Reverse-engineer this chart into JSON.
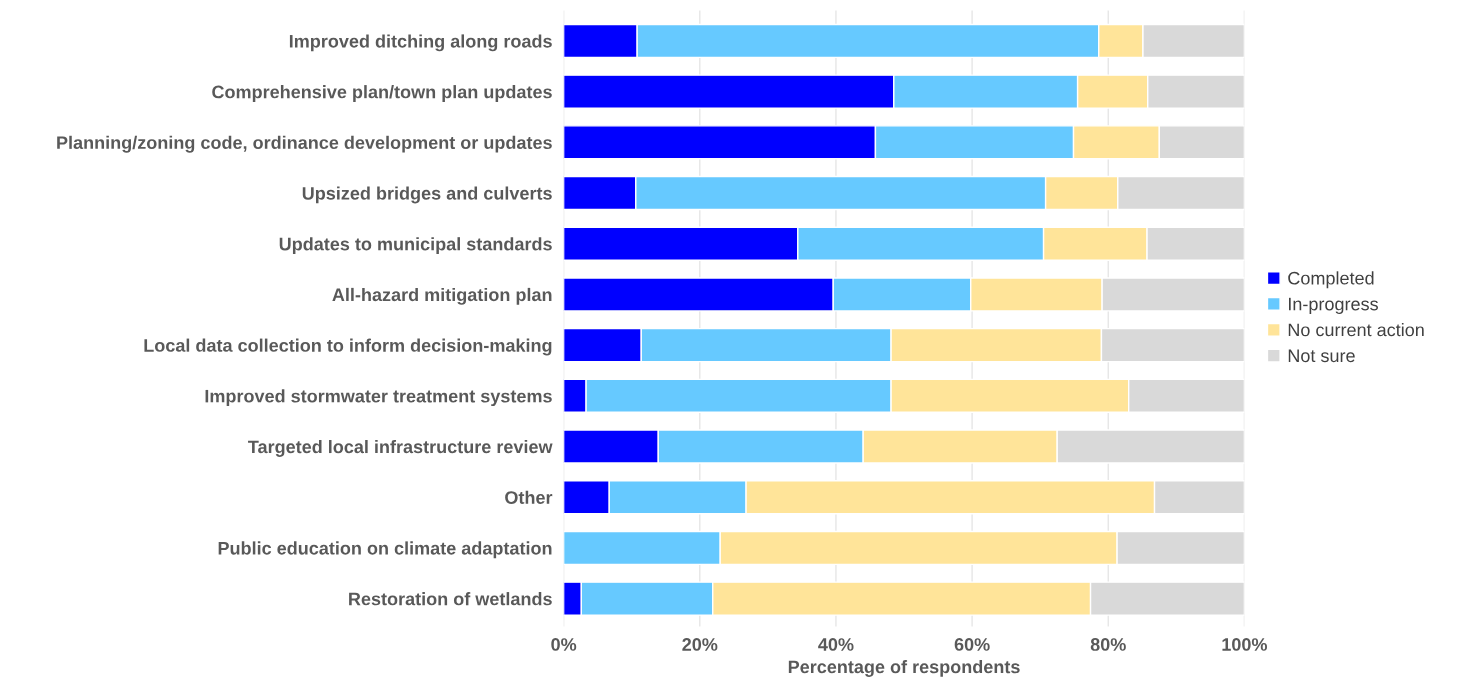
{
  "chart_data": {
    "type": "bar",
    "orientation": "horizontal",
    "stacked": true,
    "xlabel": "Percentage of respondents",
    "categories": [
      "Improved ditching along roads",
      "Comprehensive plan/town plan updates",
      "Planning/zoning code, ordinance development or updates",
      "Upsized bridges and culverts",
      "Updates to municipal standards",
      "All-hazard mitigation plan",
      "Local data collection to inform decision-making",
      "Improved stormwater treatment systems",
      "Targeted local infrastructure review",
      "Other",
      "Public education on climate adaptation",
      "Restoration of wetlands"
    ],
    "series": [
      {
        "name": "Completed",
        "color": "#0000ff",
        "values": [
          10.8,
          48.5,
          45.8,
          10.6,
          34.4,
          39.6,
          11.4,
          3.3,
          13.9,
          6.7,
          0,
          2.6
        ]
      },
      {
        "name": "In-progress",
        "color": "#66c9ff",
        "values": [
          67.8,
          27.0,
          29.1,
          60.2,
          36.1,
          20.2,
          36.7,
          44.8,
          30.1,
          20.1,
          23.0,
          19.3
        ]
      },
      {
        "name": "No current action",
        "color": "#ffe499",
        "values": [
          6.5,
          10.3,
          12.6,
          10.6,
          15.2,
          19.3,
          30.9,
          34.9,
          28.5,
          60.0,
          58.3,
          55.5
        ]
      },
      {
        "name": "Not sure",
        "color": "#d9d9d9",
        "values": [
          14.9,
          14.2,
          12.5,
          18.6,
          14.3,
          20.9,
          21.0,
          17.0,
          27.5,
          13.2,
          18.7,
          22.6
        ]
      }
    ],
    "xlim": [
      0,
      100
    ],
    "xticks": [
      {
        "value": 0,
        "label": "0%"
      },
      {
        "value": 20,
        "label": "20%"
      },
      {
        "value": 40,
        "label": "40%"
      },
      {
        "value": 60,
        "label": "60%"
      },
      {
        "value": 80,
        "label": "80%"
      },
      {
        "value": 100,
        "label": "100%"
      }
    ],
    "grid": "x",
    "legend": "right"
  }
}
